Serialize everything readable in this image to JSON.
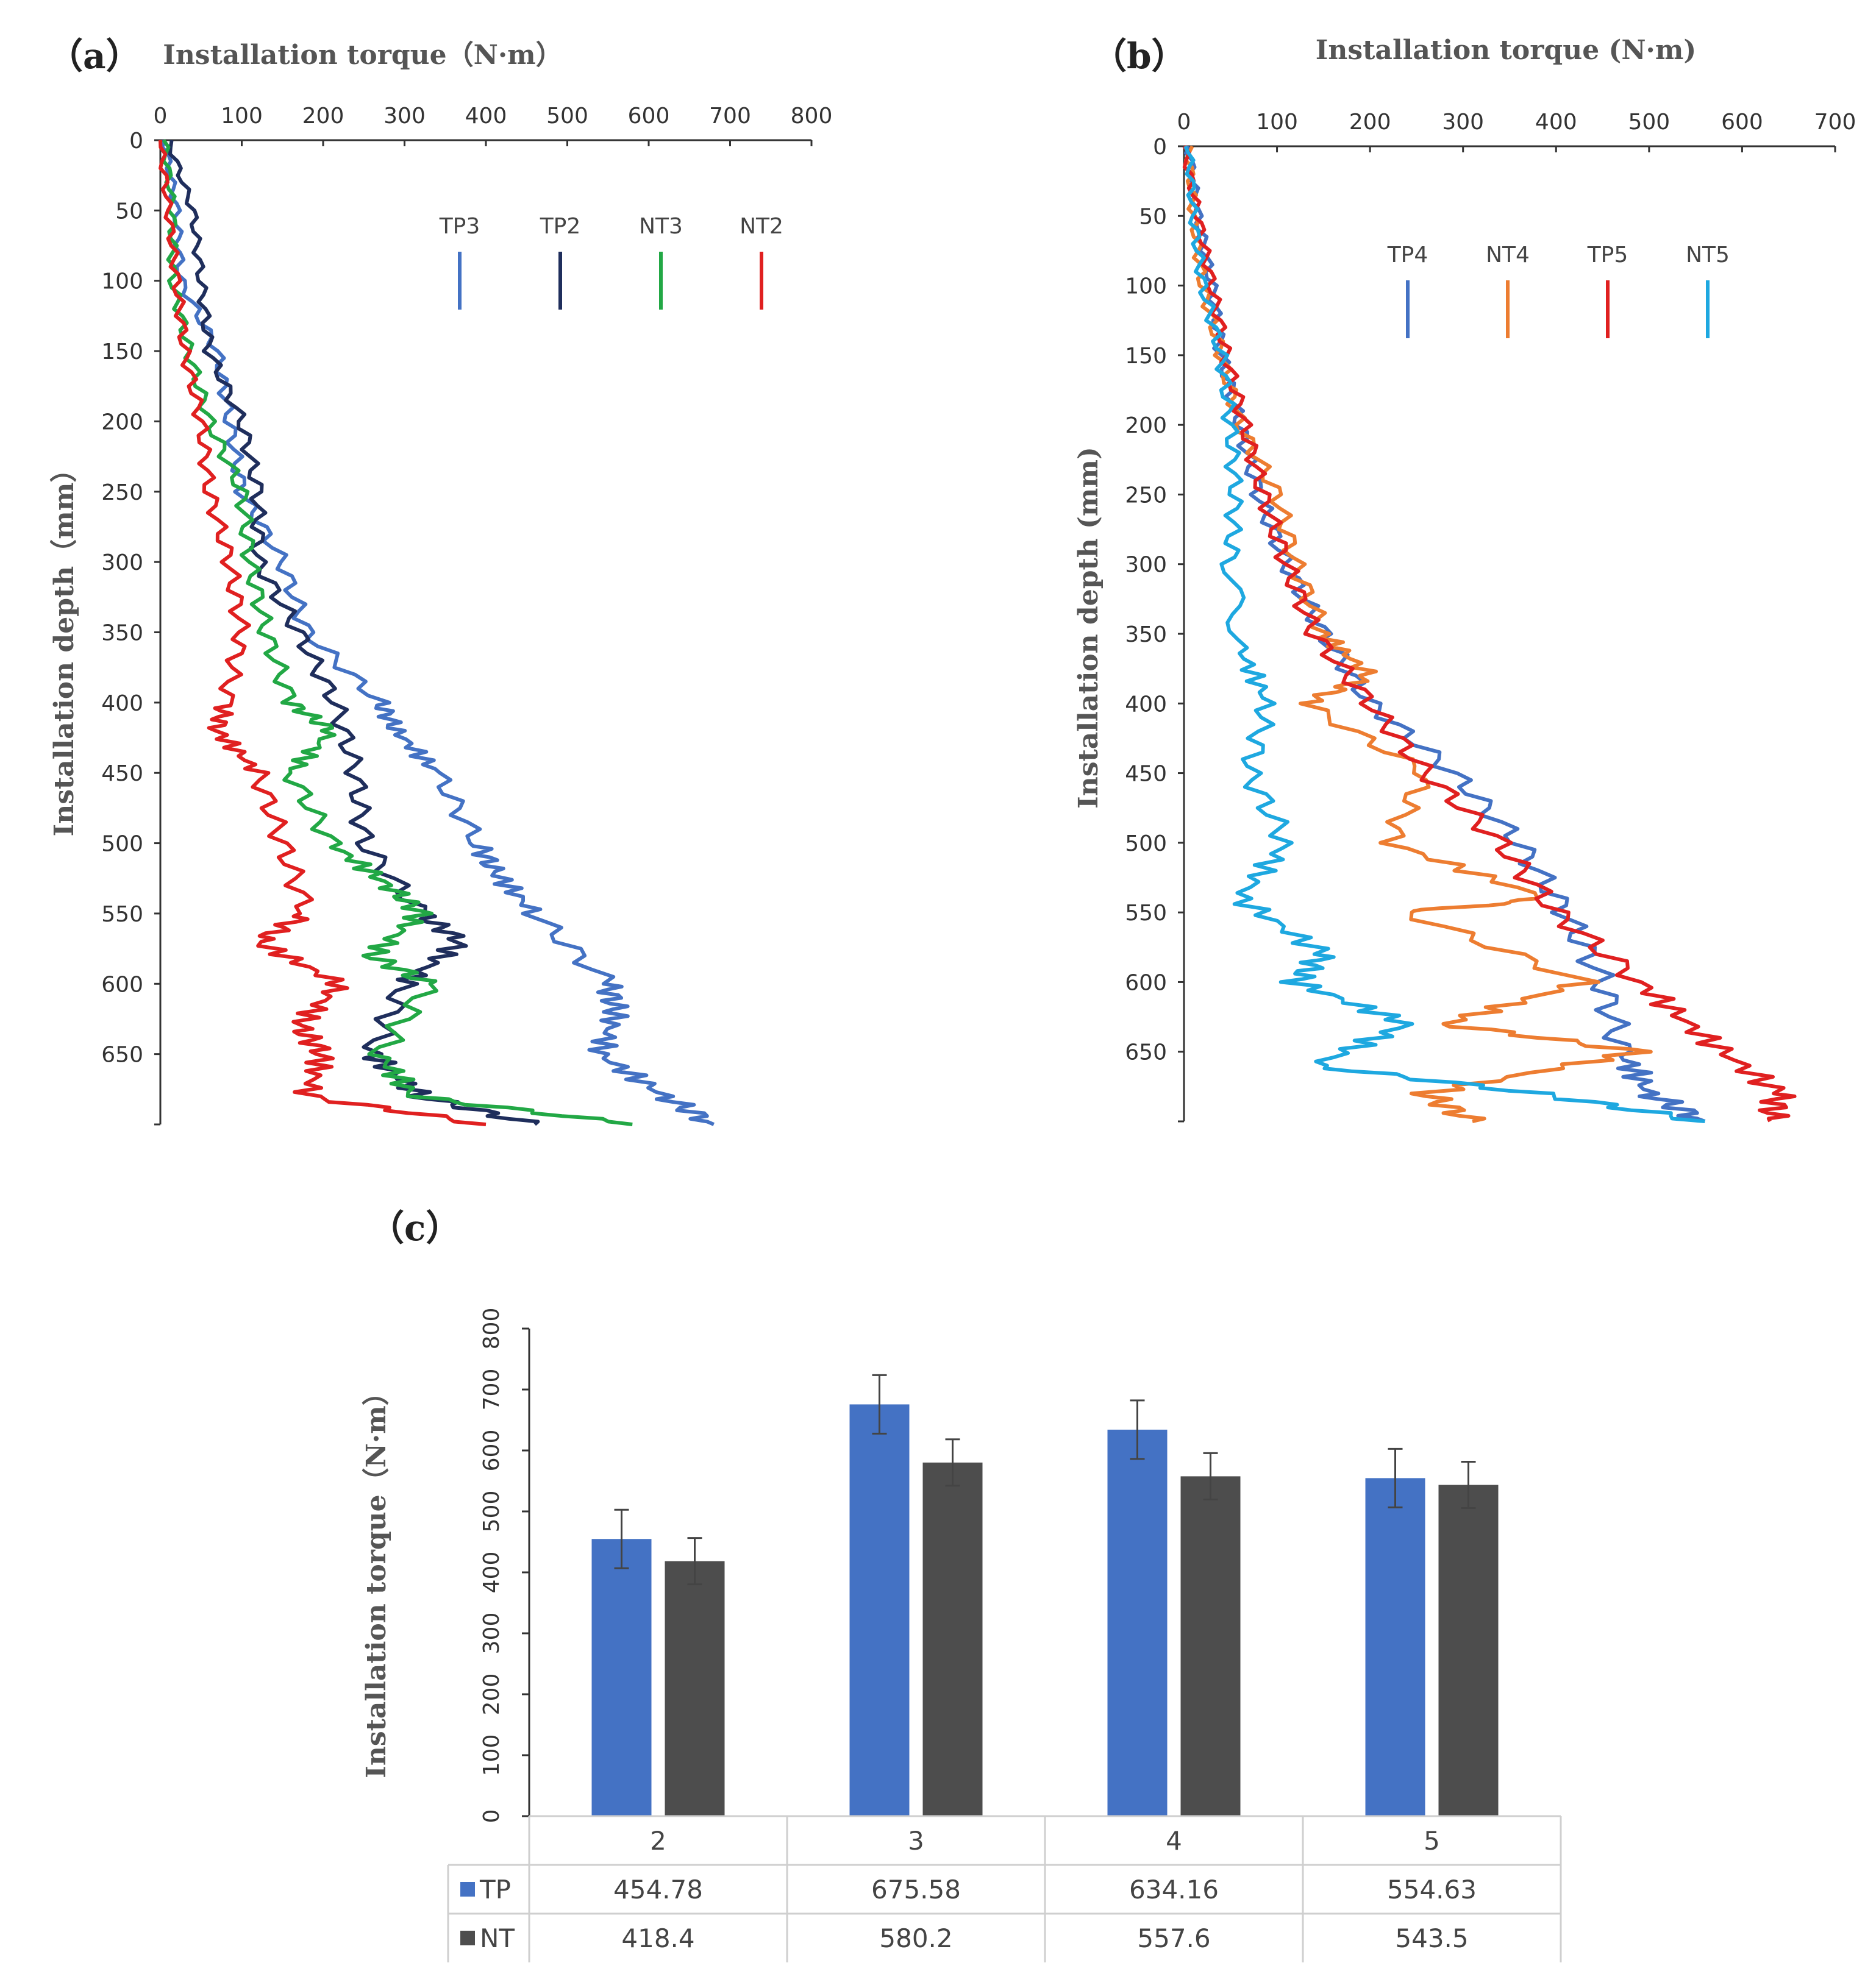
{
  "figure": {
    "panel_a_label": "（a）",
    "panel_b_label": "（b）",
    "panel_c_label": "（c）"
  },
  "chart_data": [
    {
      "id": "a",
      "type": "line",
      "title": "Installation torque（N·m）",
      "xlabel": "Installation torque（N·m）",
      "ylabel": "Installation depth（mm）",
      "xlim": [
        0,
        800
      ],
      "ylim": [
        0,
        700
      ],
      "y_inverted": true,
      "x_ticks": [
        "0",
        "100",
        "200",
        "300",
        "400",
        "500",
        "600",
        "700",
        "800"
      ],
      "y_ticks": [
        "0",
        "50",
        "100",
        "150",
        "200",
        "250",
        "300",
        "350",
        "400",
        "450",
        "500",
        "550",
        "600",
        "650"
      ],
      "legend_position": "top-right",
      "series": [
        {
          "name": "TP3",
          "color": "#4472C4",
          "depth": [
            0,
            50,
            100,
            150,
            200,
            250,
            300,
            350,
            400,
            420,
            450,
            500,
            520,
            550,
            600,
            620,
            650,
            680,
            700
          ],
          "torque": [
            5,
            20,
            25,
            70,
            85,
            100,
            150,
            180,
            270,
            290,
            340,
            390,
            410,
            460,
            550,
            560,
            540,
            620,
            680
          ]
        },
        {
          "name": "TP2",
          "color": "#1F2E5C",
          "depth": [
            0,
            50,
            100,
            150,
            200,
            250,
            300,
            350,
            400,
            450,
            500,
            550,
            570,
            600,
            650,
            680,
            700
          ],
          "torque": [
            10,
            40,
            50,
            60,
            100,
            120,
            120,
            170,
            215,
            240,
            250,
            320,
            370,
            300,
            260,
            320,
            460
          ]
        },
        {
          "name": "NT3",
          "color": "#22A845",
          "depth": [
            0,
            50,
            100,
            150,
            200,
            250,
            300,
            350,
            400,
            420,
            450,
            500,
            530,
            550,
            580,
            600,
            650,
            680,
            700
          ],
          "torque": [
            5,
            15,
            15,
            35,
            60,
            100,
            110,
            130,
            160,
            210,
            160,
            210,
            280,
            320,
            260,
            330,
            270,
            310,
            580
          ]
        },
        {
          "name": "NT2",
          "color": "#E02020",
          "depth": [
            0,
            50,
            100,
            150,
            200,
            250,
            300,
            350,
            400,
            420,
            450,
            500,
            550,
            570,
            600,
            630,
            650,
            680,
            700
          ],
          "torque": [
            0,
            10,
            20,
            30,
            50,
            60,
            85,
            100,
            80,
            70,
            120,
            150,
            180,
            120,
            220,
            170,
            200,
            180,
            400
          ]
        }
      ]
    },
    {
      "id": "b",
      "type": "line",
      "title": "Installation torque (N·m)",
      "xlabel": "Installation torque (N·m)",
      "ylabel": "Installation depth (mm)",
      "xlim": [
        0,
        700
      ],
      "ylim": [
        0,
        700
      ],
      "y_inverted": true,
      "x_ticks": [
        "0",
        "100",
        "200",
        "300",
        "400",
        "500",
        "600",
        "700"
      ],
      "y_ticks": [
        "0",
        "50",
        "100",
        "150",
        "200",
        "250",
        "300",
        "350",
        "400",
        "450",
        "500",
        "550",
        "600",
        "650"
      ],
      "legend_position": "top-right",
      "series": [
        {
          "name": "TP4",
          "color": "#4472C4",
          "depth": [
            0,
            50,
            100,
            150,
            200,
            250,
            300,
            350,
            400,
            450,
            500,
            550,
            600,
            650,
            680,
            700
          ],
          "torque": [
            5,
            15,
            30,
            40,
            60,
            80,
            110,
            150,
            200,
            290,
            360,
            410,
            450,
            470,
            500,
            560
          ]
        },
        {
          "name": "NT4",
          "color": "#ED7D31",
          "depth": [
            0,
            50,
            100,
            150,
            200,
            250,
            300,
            350,
            380,
            400,
            450,
            500,
            540,
            550,
            600,
            630,
            650,
            680,
            700
          ],
          "torque": [
            5,
            10,
            20,
            40,
            60,
            100,
            120,
            150,
            200,
            130,
            260,
            220,
            390,
            240,
            430,
            280,
            490,
            260,
            310
          ]
        },
        {
          "name": "TP5",
          "color": "#E02020",
          "depth": [
            0,
            50,
            100,
            150,
            200,
            250,
            300,
            350,
            400,
            450,
            500,
            550,
            600,
            640,
            680,
            700
          ],
          "torque": [
            0,
            15,
            30,
            45,
            65,
            85,
            110,
            140,
            200,
            260,
            340,
            400,
            490,
            560,
            640,
            630
          ]
        },
        {
          "name": "NT5",
          "color": "#1EA8E0",
          "depth": [
            0,
            50,
            100,
            150,
            200,
            250,
            300,
            360,
            400,
            450,
            500,
            540,
            580,
            600,
            630,
            660,
            680,
            700
          ],
          "torque": [
            5,
            10,
            20,
            40,
            50,
            55,
            50,
            60,
            90,
            70,
            110,
            60,
            150,
            120,
            240,
            140,
            380,
            560
          ]
        }
      ]
    },
    {
      "id": "c",
      "type": "bar",
      "ylabel": "Installation torque（N·m）",
      "ylim": [
        0,
        800
      ],
      "y_ticks": [
        "0",
        "100",
        "200",
        "300",
        "400",
        "500",
        "600",
        "700",
        "800"
      ],
      "categories": [
        "2",
        "3",
        "4",
        "5"
      ],
      "series": [
        {
          "name": "TP",
          "color": "#4472C4",
          "values": [
            454.78,
            675.58,
            634.16,
            554.63
          ],
          "value_labels": [
            "454.78",
            "675.58",
            "634.16",
            "554.63"
          ],
          "errors": [
            48,
            48,
            48,
            48
          ]
        },
        {
          "name": "NT",
          "color": "#4D4D4D",
          "values": [
            418.4,
            580.2,
            557.6,
            543.5
          ],
          "value_labels": [
            "418.4",
            "580.2",
            "557.6",
            "543.5"
          ],
          "errors": [
            38,
            38,
            38,
            38
          ]
        }
      ],
      "data_table": true
    }
  ]
}
